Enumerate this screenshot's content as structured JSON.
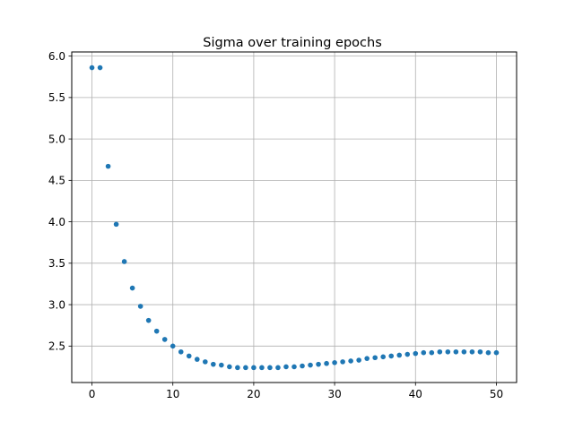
{
  "chart_data": {
    "type": "scatter",
    "title": "Sigma over training epochs",
    "xlabel": "",
    "ylabel": "",
    "xlim": [
      -2.5,
      52.5
    ],
    "ylim": [
      2.06,
      6.05
    ],
    "x_ticks": [
      0,
      10,
      20,
      30,
      40,
      50
    ],
    "y_ticks": [
      2.5,
      3.0,
      3.5,
      4.0,
      4.5,
      5.0,
      5.5,
      6.0
    ],
    "x_tick_labels": [
      "0",
      "10",
      "20",
      "30",
      "40",
      "50"
    ],
    "y_tick_labels": [
      "2.5",
      "3.0",
      "3.5",
      "4.0",
      "4.5",
      "5.0",
      "5.5",
      "6.0"
    ],
    "grid": true,
    "marker_color": "#1f77b4",
    "series": [
      {
        "x": [
          0,
          1,
          2,
          3,
          4,
          5,
          6,
          7,
          8,
          9,
          10,
          11,
          12,
          13,
          14,
          15,
          16,
          17,
          18,
          19,
          20,
          21,
          22,
          23,
          24,
          25,
          26,
          27,
          28,
          29,
          30,
          31,
          32,
          33,
          34,
          35,
          36,
          37,
          38,
          39,
          40,
          41,
          42,
          43,
          44,
          45,
          46,
          47,
          48,
          49,
          50
        ],
        "y": [
          5.86,
          5.86,
          4.67,
          3.97,
          3.52,
          3.2,
          2.98,
          2.81,
          2.68,
          2.58,
          2.5,
          2.43,
          2.38,
          2.34,
          2.31,
          2.28,
          2.27,
          2.25,
          2.24,
          2.24,
          2.24,
          2.24,
          2.24,
          2.24,
          2.25,
          2.25,
          2.26,
          2.27,
          2.28,
          2.29,
          2.3,
          2.31,
          2.32,
          2.33,
          2.35,
          2.36,
          2.37,
          2.38,
          2.39,
          2.4,
          2.41,
          2.42,
          2.42,
          2.43,
          2.43,
          2.43,
          2.43,
          2.43,
          2.43,
          2.42,
          2.42
        ]
      }
    ]
  }
}
